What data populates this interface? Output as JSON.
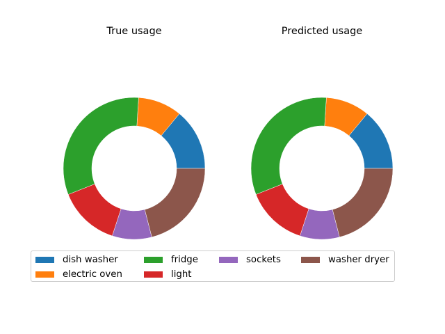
{
  "chart_data": [
    {
      "type": "pie",
      "style": "donut",
      "title": "True usage",
      "categories": [
        "dish washer",
        "electric oven",
        "fridge",
        "light",
        "sockets",
        "washer dryer"
      ],
      "values": [
        14,
        10,
        32,
        14,
        9,
        21
      ]
    },
    {
      "type": "pie",
      "style": "donut",
      "title": "Predicted usage",
      "categories": [
        "dish washer",
        "electric oven",
        "fridge",
        "light",
        "sockets",
        "washer dryer"
      ],
      "values": [
        14,
        10,
        32,
        14,
        9,
        21
      ]
    }
  ],
  "legend": {
    "placement": "lower-center",
    "items": [
      {
        "label": "dish washer",
        "color": "#1f77b4"
      },
      {
        "label": "electric oven",
        "color": "#ff7f0e"
      },
      {
        "label": "fridge",
        "color": "#2ca02c"
      },
      {
        "label": "light",
        "color": "#d62728"
      },
      {
        "label": "sockets",
        "color": "#9467bd"
      },
      {
        "label": "washer dryer",
        "color": "#8c564b"
      }
    ]
  }
}
